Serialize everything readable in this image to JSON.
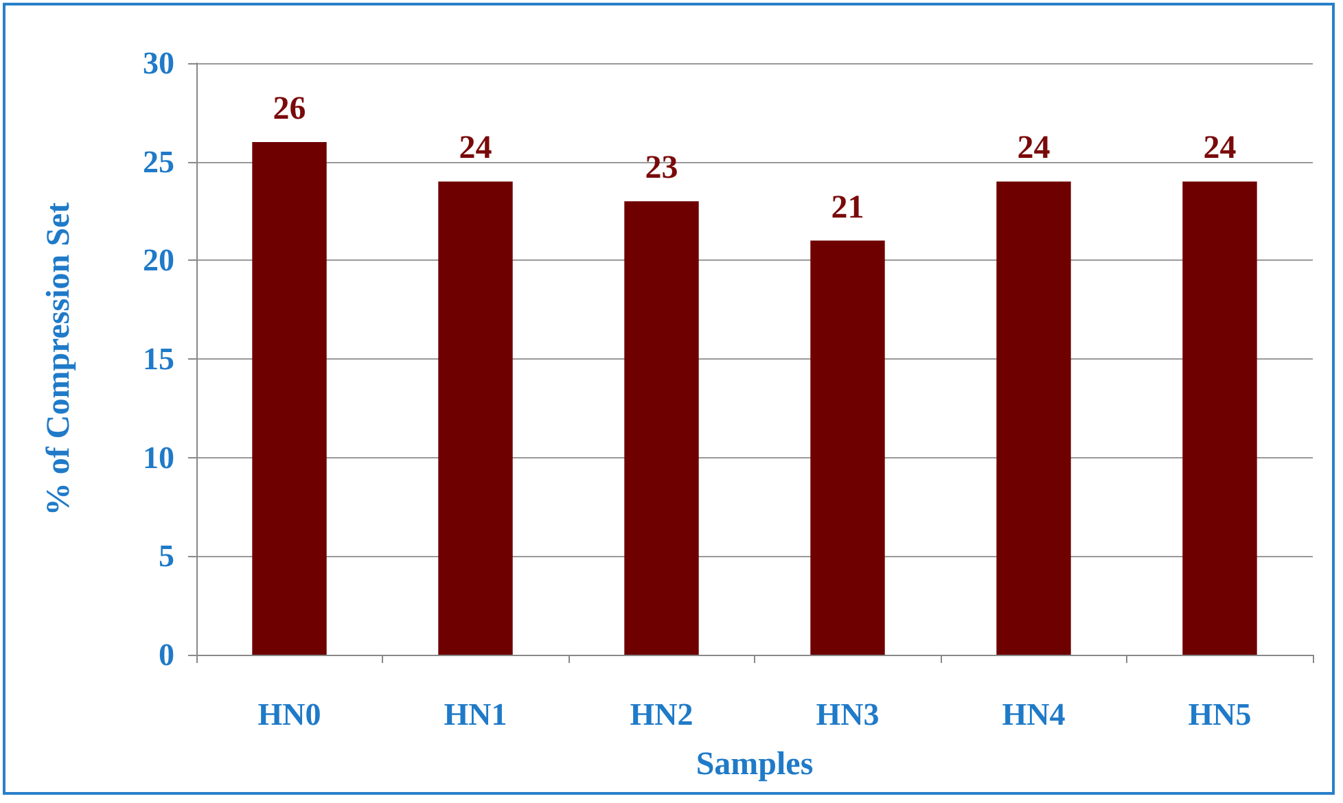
{
  "chart_data": {
    "type": "bar",
    "xlabel": "Samples",
    "ylabel": "% of Compression Set",
    "categories": [
      "HN0",
      "HN1",
      "HN2",
      "HN3",
      "HN4",
      "HN5"
    ],
    "values": [
      26,
      24,
      23,
      21,
      24,
      24
    ],
    "color": "#6e0000",
    "ylim": [
      0,
      30
    ],
    "yticks": [
      0,
      5,
      10,
      15,
      20,
      25,
      30
    ],
    "grid": "y",
    "data_labels": true
  }
}
